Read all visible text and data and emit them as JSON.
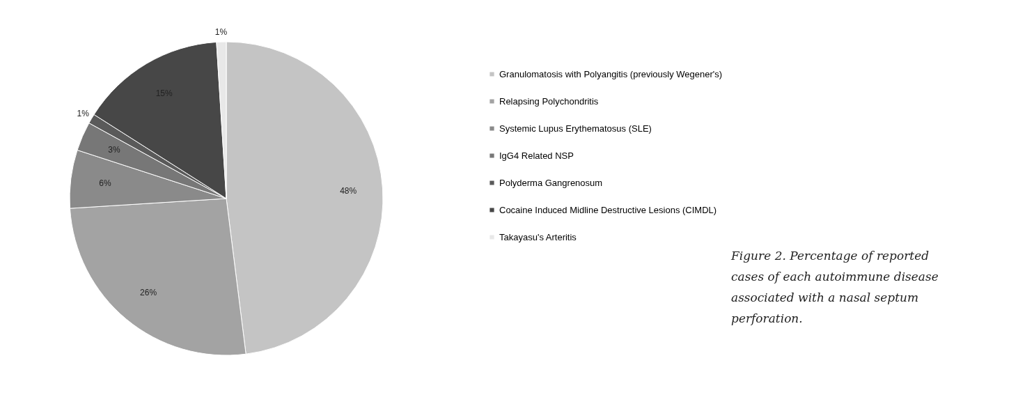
{
  "chart_data": {
    "type": "pie",
    "categories": [
      "Granulomatosis with Polyangitis (previously Wegener's)",
      "Relapsing Polychondritis",
      "Systemic Lupus Erythematosus (SLE)",
      "IgG4 Related NSP",
      "Polyderma Gangrenosum",
      "Cocaine Induced Midline Destructive Lesions (CIMDL)",
      "Takayasu's Arteritis"
    ],
    "values": [
      48,
      26,
      6,
      3,
      1,
      15,
      1
    ],
    "value_labels": [
      "48%",
      "26%",
      "6%",
      "3%",
      "1%",
      "15%",
      "1%"
    ],
    "colors": [
      "#c4c4c4",
      "#a3a3a3",
      "#8a8a8a",
      "#777777",
      "#5a5a5a",
      "#474747",
      "#e8e8e8"
    ],
    "legend": "right",
    "annotations": [
      "Figure 2. Percentage of reported cases of each autoimmune disease associated with a nasal septum perforation."
    ]
  }
}
